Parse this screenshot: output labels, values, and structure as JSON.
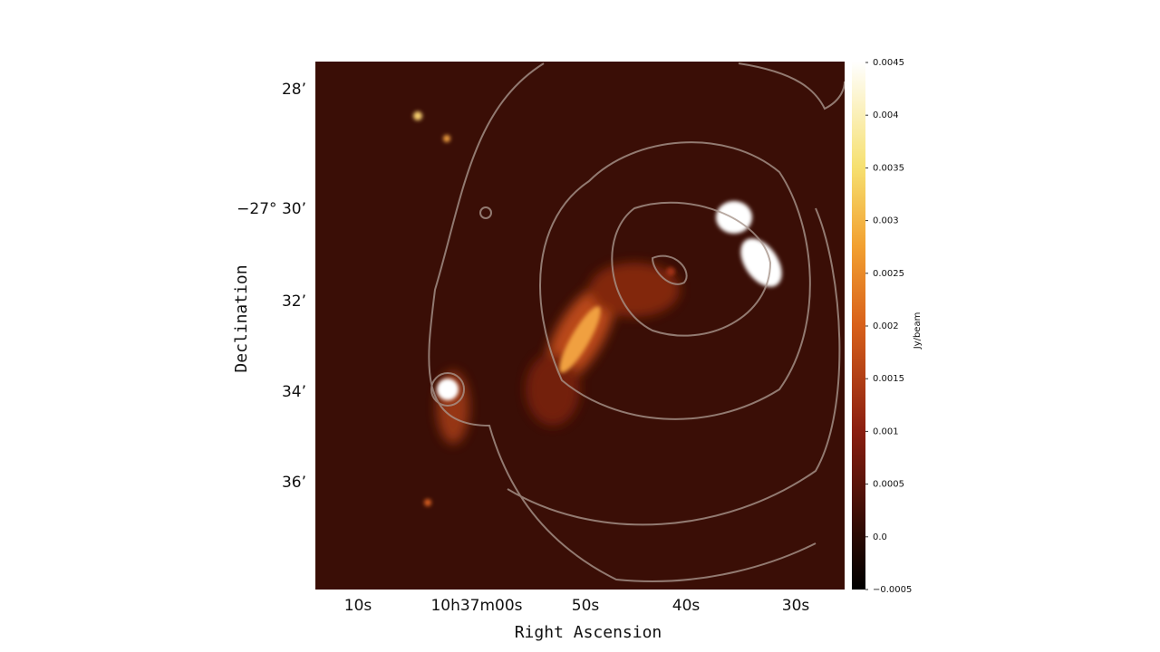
{
  "figure": {
    "x_label": "Right Ascension",
    "y_label": "Declination",
    "x_ticks": [
      "10s",
      "10h37m00s",
      "50s",
      "40s",
      "30s"
    ],
    "y_ticks": [
      "28’",
      "−27° 30’",
      "32’",
      "34’",
      "36’"
    ],
    "colorbar": {
      "label": "Jy/beam",
      "lim": [
        -0.0005,
        0.0045
      ],
      "ticks": [
        0.0045,
        0.004,
        0.0035,
        0.003,
        0.0025,
        0.002,
        0.0015,
        0.001,
        0.0005,
        {
          "value": 0,
          "label": "0.0"
        },
        {
          "value": -0.0005,
          "label": "−0.0005"
        }
      ]
    }
  }
}
